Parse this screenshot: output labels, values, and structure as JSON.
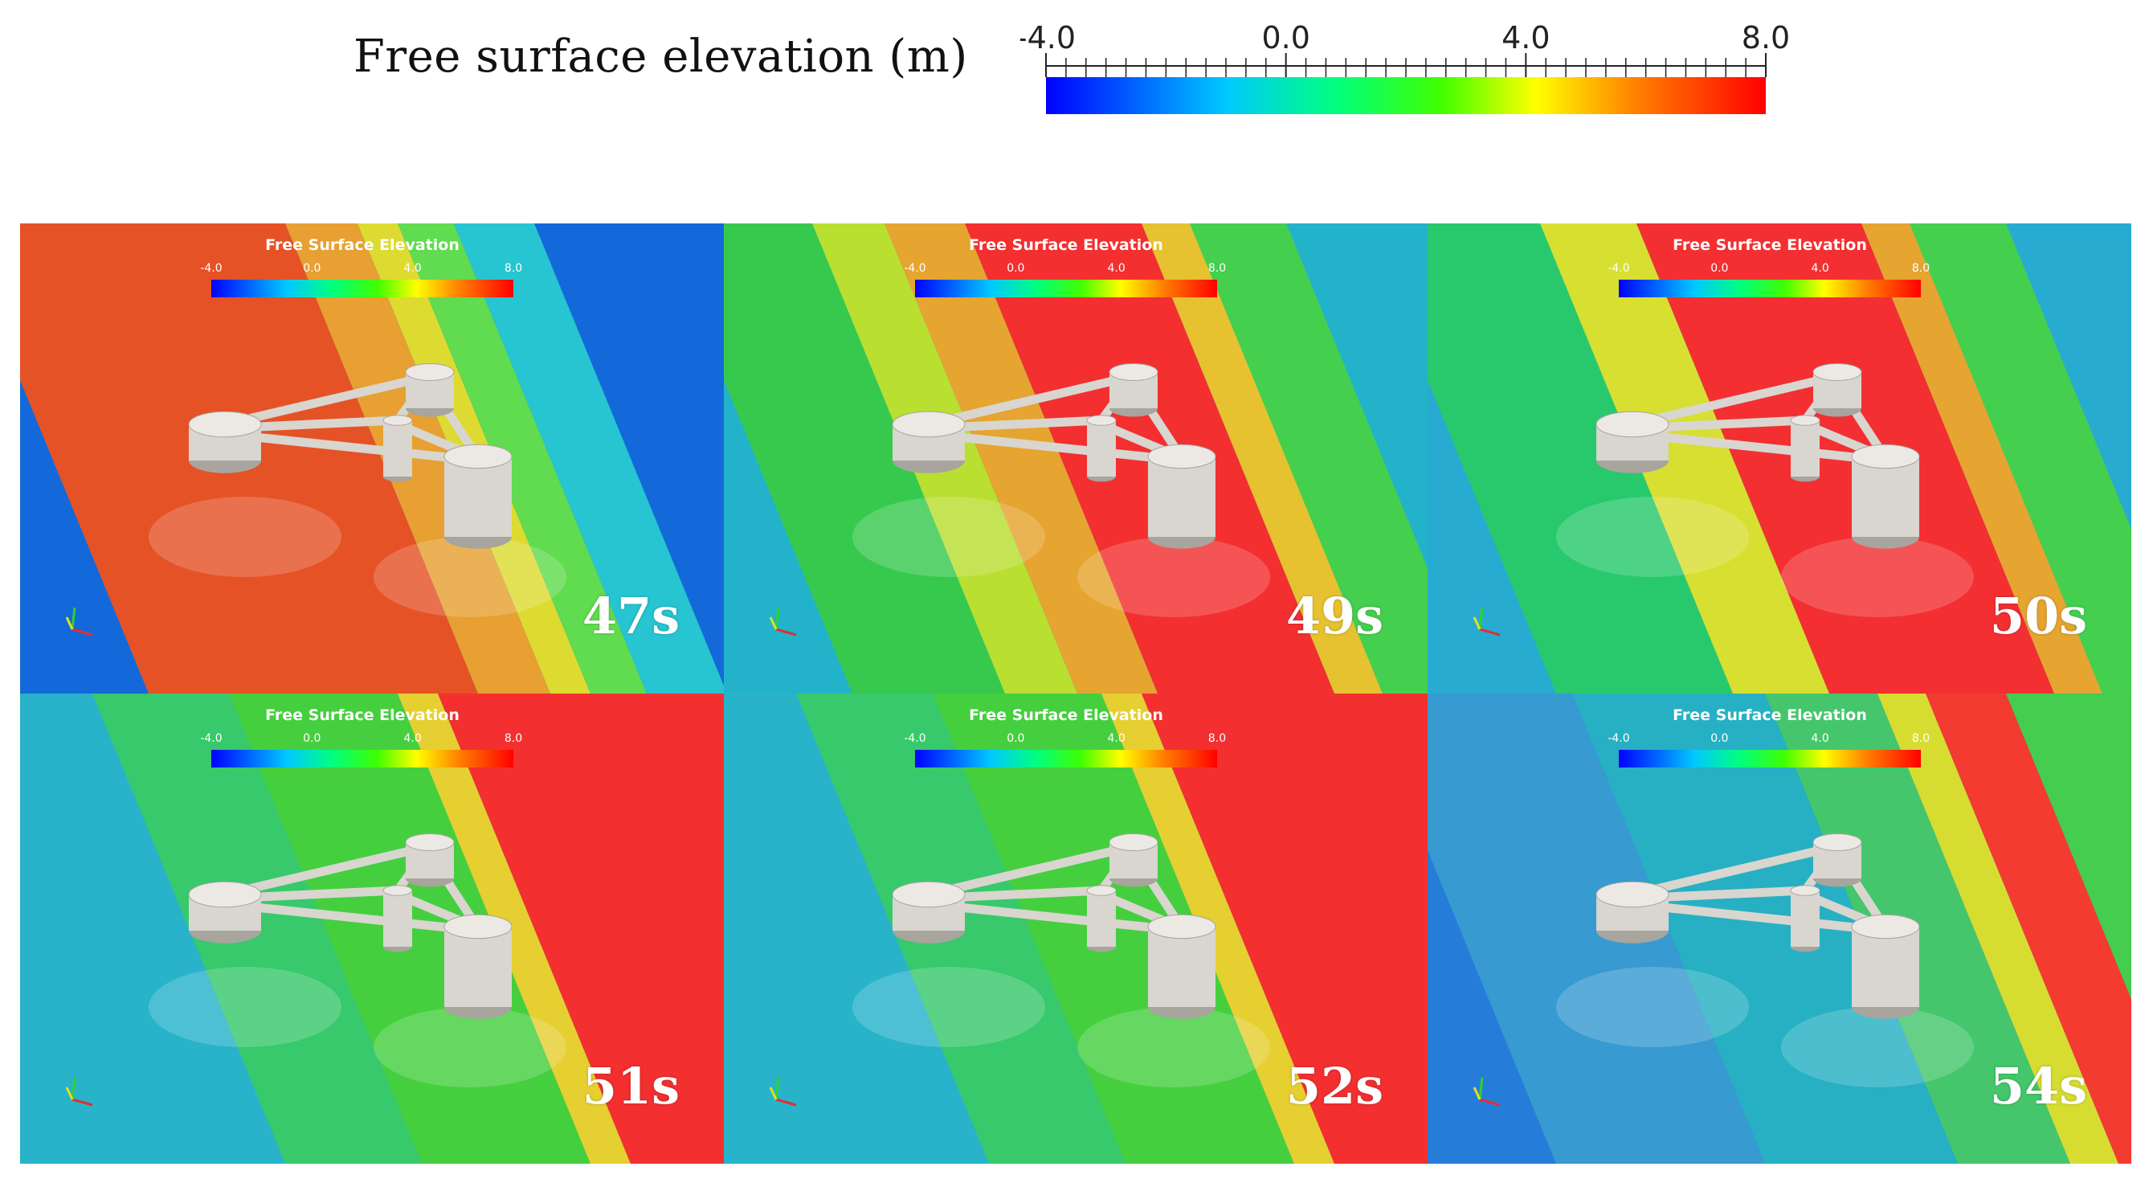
{
  "header": {
    "title": "Free surface elevation  (m)",
    "colorbar_ticks": [
      "-4.0",
      "0.0",
      "4.0",
      "8.0"
    ],
    "colorbar_range": [
      -4.0,
      8.0
    ],
    "colormap": [
      "#0000ff",
      "#00c8ff",
      "#00ff80",
      "#40ff00",
      "#ffff00",
      "#ff8000",
      "#ff0000"
    ]
  },
  "panels": [
    {
      "time": "47s",
      "mini_title": "Free Surface Elevation",
      "mini_ticks": [
        "-4.0",
        "0.0",
        "4.0",
        "8.0"
      ],
      "theme": "crest-left"
    },
    {
      "time": "49s",
      "mini_title": "Free Surface Elevation",
      "mini_ticks": [
        "-4.0",
        "0.0",
        "4.0",
        "8.0"
      ],
      "theme": "crest-center"
    },
    {
      "time": "50s",
      "mini_title": "Free Surface Elevation",
      "mini_ticks": [
        "-4.0",
        "0.0",
        "4.0",
        "8.0"
      ],
      "theme": "crest-center-right"
    },
    {
      "time": "51s",
      "mini_title": "Free Surface Elevation",
      "mini_ticks": [
        "-4.0",
        "0.0",
        "4.0",
        "8.0"
      ],
      "theme": "crest-right"
    },
    {
      "time": "52s",
      "mini_title": "Free Surface Elevation",
      "mini_ticks": [
        "-4.0",
        "0.0",
        "4.0",
        "8.0"
      ],
      "theme": "crest-right"
    },
    {
      "time": "54s",
      "mini_title": "Free Surface Elevation",
      "mini_ticks": [
        "-4.0",
        "0.0",
        "4.0",
        "8.0"
      ],
      "theme": "trough"
    }
  ]
}
